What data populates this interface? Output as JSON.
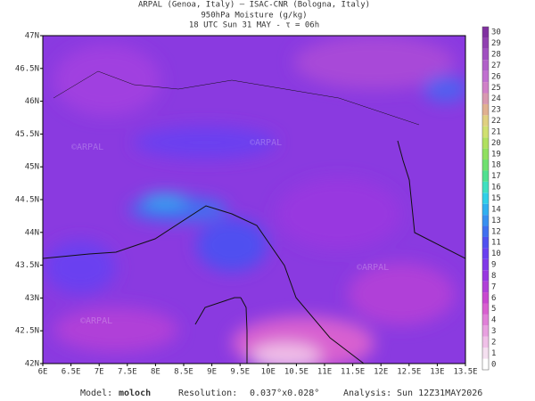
{
  "header": {
    "line1": "ARPAL (Genoa, Italy)  —  ISAC-CNR (Bologna, Italy)",
    "line2": "950hPa Moisture (g/kg)",
    "line3": "18 UTC Sun 31 MAY  -  τ = 06h"
  },
  "map": {
    "lon_labels": [
      "6E",
      "6.5E",
      "7E",
      "7.5E",
      "8E",
      "8.5E",
      "9E",
      "9.5E",
      "10E",
      "10.5E",
      "11E",
      "11.5E",
      "12E",
      "12.5E",
      "13E",
      "13.5E"
    ],
    "lat_labels": [
      "47N",
      "46.5N",
      "46N",
      "45.5N",
      "45N",
      "44.5N",
      "44N",
      "43.5N",
      "43N",
      "42.5N",
      "42N"
    ],
    "watermark": "©ARPAL"
  },
  "colorbar": {
    "ticks": [
      0,
      1,
      2,
      3,
      4,
      5,
      6,
      7,
      8,
      9,
      10,
      11,
      12,
      13,
      14,
      15,
      16,
      17,
      18,
      19,
      20,
      21,
      22,
      23,
      24,
      25,
      26,
      27,
      28,
      29,
      30
    ],
    "colors": [
      "#ffffff",
      "#f5e0f0",
      "#f0c0e8",
      "#e8a0e0",
      "#e080d8",
      "#d860d0",
      "#c848d0",
      "#b040d8",
      "#9838e0",
      "#8038e8",
      "#6a40f0",
      "#5050f0",
      "#4070f0",
      "#3890f0",
      "#30b0f0",
      "#30d0e8",
      "#40e0c0",
      "#50e090",
      "#70e070",
      "#90e060",
      "#b0e060",
      "#d0e070",
      "#e0d080",
      "#e0b090",
      "#d898b0",
      "#d080c8",
      "#c070d0",
      "#b060c8",
      "#a050c0",
      "#9040b0",
      "#8030a0"
    ]
  },
  "footer": {
    "model_label": "Model:",
    "model": "moloch",
    "resolution_label": "Resolution:",
    "resolution": "0.037°x0.028°",
    "analysis_label": "Analysis:",
    "analysis": "Sun 12Z31MAY2026"
  }
}
